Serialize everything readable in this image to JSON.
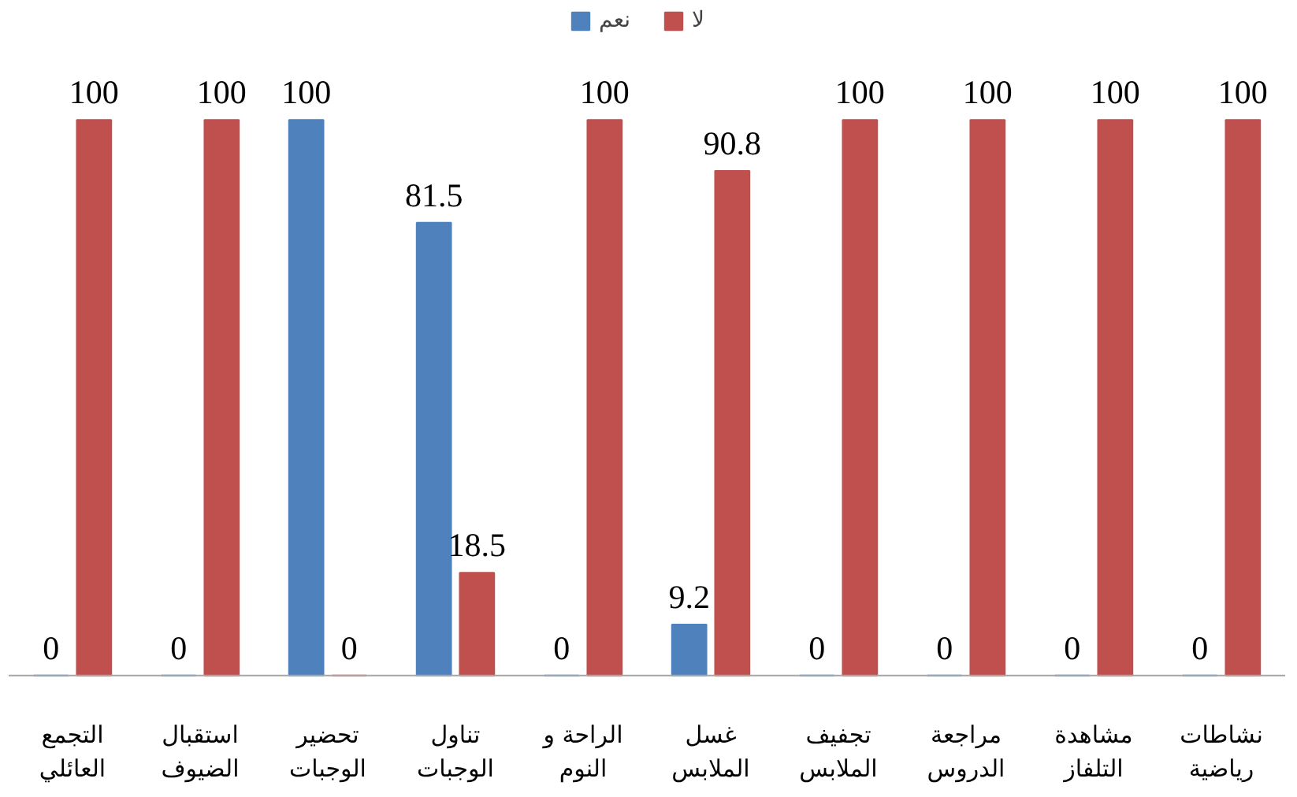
{
  "chart_data": {
    "type": "bar",
    "categories": [
      "التجمع\nالعائلي",
      "استقبال\nالضيوف",
      "تحضير\nالوجبات",
      "تناول\nالوجبات",
      "الراحة و\nالنوم",
      "غسل\nالملابس",
      "تجفيف\nالملابس",
      "مراجعة\nالدروس",
      "مشاهدة\nالتلفاز",
      "نشاطات\nرياضية"
    ],
    "series": [
      {
        "name": "نعم",
        "color": "#4f81bd",
        "values": [
          0,
          0,
          100,
          81.5,
          0,
          9.2,
          0,
          0,
          0,
          0
        ]
      },
      {
        "name": "لا",
        "color": "#c0504d",
        "values": [
          100,
          100,
          0,
          18.5,
          100,
          90.8,
          100,
          100,
          100,
          100
        ]
      }
    ],
    "data_labels": true,
    "legend": "top",
    "grid": false
  }
}
